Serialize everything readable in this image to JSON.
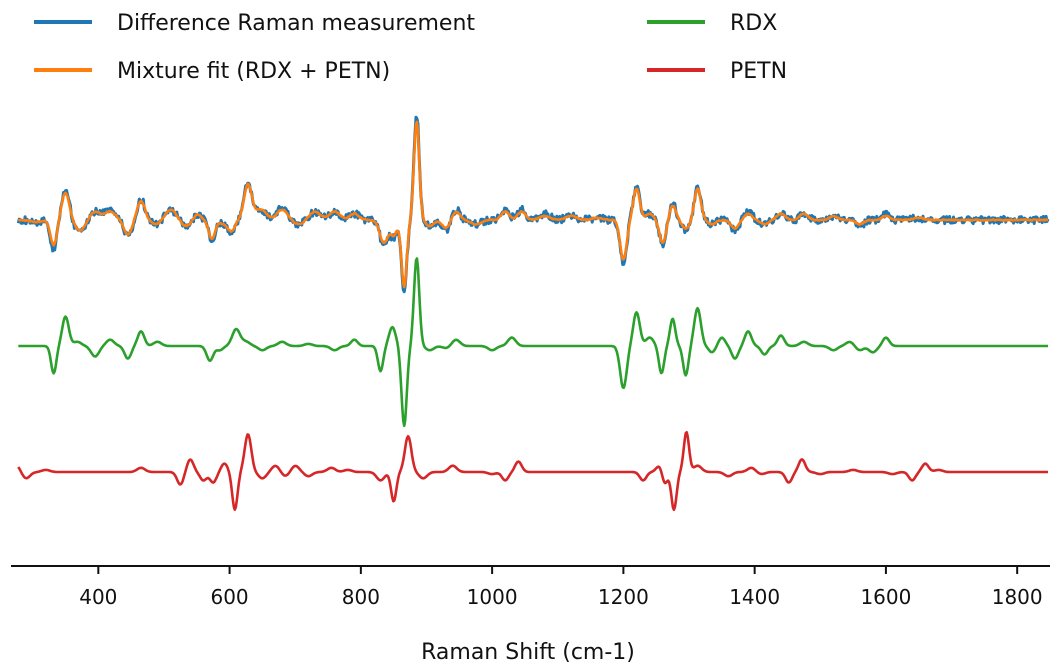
{
  "chart_data": {
    "type": "line",
    "xlabel": "Raman  Shift (cm-1)",
    "ylabel": "",
    "xlim": [
      270,
      1850
    ],
    "x_ticks": [
      400,
      600,
      800,
      1000,
      1200,
      1400,
      1600,
      1800
    ],
    "y_axis_shown": false,
    "grid": false,
    "legend_placement": "top",
    "series": [
      {
        "name": "Difference Raman measurement",
        "color": "#1f77b4",
        "offset": 0,
        "features": [
          [
            305,
            -0.1,
            8
          ],
          [
            332,
            -1.4,
            5
          ],
          [
            350,
            1.4,
            6
          ],
          [
            372,
            -0.6,
            8
          ],
          [
            395,
            0.4,
            8
          ],
          [
            418,
            0.5,
            8
          ],
          [
            445,
            -0.8,
            6
          ],
          [
            465,
            1.0,
            6
          ],
          [
            488,
            -0.2,
            8
          ],
          [
            510,
            0.5,
            8
          ],
          [
            535,
            -0.3,
            8
          ],
          [
            550,
            0.3,
            6
          ],
          [
            573,
            -1.0,
            5
          ],
          [
            592,
            -0.2,
            6
          ],
          [
            603,
            -0.6,
            5
          ],
          [
            628,
            1.8,
            6
          ],
          [
            648,
            0.5,
            8
          ],
          [
            680,
            0.6,
            8
          ],
          [
            705,
            -0.2,
            8
          ],
          [
            730,
            0.4,
            8
          ],
          [
            760,
            0.4,
            8
          ],
          [
            790,
            0.3,
            7
          ],
          [
            835,
            -1.2,
            6
          ],
          [
            850,
            -0.8,
            5
          ],
          [
            866,
            -3.5,
            4
          ],
          [
            885,
            5.0,
            4
          ],
          [
            905,
            -0.3,
            6
          ],
          [
            930,
            -0.5,
            6
          ],
          [
            945,
            0.5,
            6
          ],
          [
            975,
            -0.2,
            8
          ],
          [
            1020,
            0.5,
            6
          ],
          [
            1045,
            0.5,
            6
          ],
          [
            1080,
            0.3,
            8
          ],
          [
            1120,
            0.2,
            8
          ],
          [
            1160,
            0.1,
            8
          ],
          [
            1200,
            -2.0,
            5
          ],
          [
            1220,
            1.6,
            5
          ],
          [
            1240,
            0.3,
            6
          ],
          [
            1260,
            -1.2,
            5
          ],
          [
            1275,
            0.8,
            5
          ],
          [
            1295,
            -0.5,
            6
          ],
          [
            1313,
            1.6,
            5
          ],
          [
            1335,
            -0.2,
            6
          ],
          [
            1370,
            -0.5,
            6
          ],
          [
            1390,
            0.4,
            6
          ],
          [
            1415,
            -0.2,
            6
          ],
          [
            1440,
            0.3,
            6
          ],
          [
            1475,
            0.3,
            6
          ],
          [
            1520,
            0.2,
            6
          ],
          [
            1560,
            -0.3,
            6
          ],
          [
            1600,
            0.3,
            6
          ],
          [
            1650,
            0.1,
            8
          ]
        ],
        "noise": 0.35
      },
      {
        "name": "Mixture fit (RDX + PETN)",
        "color": "#ff7f0e",
        "offset": 0,
        "features": [
          [
            305,
            -0.1,
            8
          ],
          [
            332,
            -1.2,
            5
          ],
          [
            350,
            1.3,
            6
          ],
          [
            372,
            -0.5,
            8
          ],
          [
            395,
            0.4,
            8
          ],
          [
            418,
            0.4,
            8
          ],
          [
            445,
            -0.7,
            6
          ],
          [
            465,
            0.9,
            6
          ],
          [
            488,
            -0.2,
            8
          ],
          [
            510,
            0.5,
            8
          ],
          [
            535,
            -0.3,
            8
          ],
          [
            550,
            0.3,
            6
          ],
          [
            573,
            -0.9,
            5
          ],
          [
            592,
            -0.2,
            6
          ],
          [
            603,
            -0.5,
            5
          ],
          [
            628,
            1.7,
            6
          ],
          [
            648,
            0.5,
            8
          ],
          [
            680,
            0.5,
            8
          ],
          [
            705,
            -0.2,
            8
          ],
          [
            730,
            0.4,
            8
          ],
          [
            760,
            0.4,
            8
          ],
          [
            790,
            0.3,
            7
          ],
          [
            835,
            -1.1,
            6
          ],
          [
            850,
            -0.7,
            5
          ],
          [
            866,
            -3.2,
            4
          ],
          [
            885,
            4.7,
            4
          ],
          [
            905,
            -0.3,
            6
          ],
          [
            930,
            -0.4,
            6
          ],
          [
            945,
            0.4,
            6
          ],
          [
            975,
            -0.2,
            8
          ],
          [
            1020,
            0.4,
            6
          ],
          [
            1045,
            0.4,
            6
          ],
          [
            1080,
            0.2,
            8
          ],
          [
            1120,
            0.2,
            8
          ],
          [
            1160,
            0.1,
            8
          ],
          [
            1200,
            -1.9,
            5
          ],
          [
            1220,
            1.5,
            5
          ],
          [
            1240,
            0.3,
            6
          ],
          [
            1260,
            -1.1,
            5
          ],
          [
            1275,
            0.7,
            5
          ],
          [
            1295,
            -0.4,
            6
          ],
          [
            1313,
            1.5,
            5
          ],
          [
            1335,
            -0.2,
            6
          ],
          [
            1370,
            -0.4,
            6
          ],
          [
            1390,
            0.3,
            6
          ],
          [
            1415,
            -0.2,
            6
          ],
          [
            1440,
            0.3,
            6
          ],
          [
            1475,
            0.3,
            6
          ],
          [
            1520,
            0.2,
            6
          ],
          [
            1560,
            -0.2,
            6
          ],
          [
            1600,
            0.2,
            6
          ],
          [
            1650,
            0.1,
            8
          ]
        ],
        "noise": 0.05
      },
      {
        "name": "RDX",
        "color": "#2ca02c",
        "offset": -6,
        "features": [
          [
            332,
            -1.3,
            4
          ],
          [
            350,
            1.4,
            5
          ],
          [
            368,
            0.2,
            6
          ],
          [
            395,
            -0.5,
            6
          ],
          [
            418,
            0.3,
            6
          ],
          [
            445,
            -0.6,
            5
          ],
          [
            465,
            0.7,
            5
          ],
          [
            490,
            0.2,
            6
          ],
          [
            570,
            -0.7,
            5
          ],
          [
            585,
            -0.2,
            5
          ],
          [
            610,
            0.8,
            6
          ],
          [
            625,
            0.2,
            6
          ],
          [
            650,
            -0.2,
            6
          ],
          [
            680,
            0.2,
            6
          ],
          [
            720,
            0.1,
            6
          ],
          [
            760,
            -0.2,
            6
          ],
          [
            790,
            0.3,
            5
          ],
          [
            830,
            -1.2,
            4
          ],
          [
            848,
            0.9,
            5
          ],
          [
            866,
            -3.8,
            4
          ],
          [
            885,
            4.2,
            4
          ],
          [
            905,
            -0.2,
            6
          ],
          [
            930,
            -0.1,
            6
          ],
          [
            945,
            0.3,
            6
          ],
          [
            1000,
            -0.2,
            6
          ],
          [
            1030,
            0.4,
            6
          ],
          [
            1200,
            -2.0,
            5
          ],
          [
            1220,
            1.6,
            5
          ],
          [
            1240,
            0.4,
            6
          ],
          [
            1258,
            -1.3,
            4
          ],
          [
            1275,
            1.3,
            4
          ],
          [
            1295,
            -1.4,
            4
          ],
          [
            1313,
            1.8,
            5
          ],
          [
            1335,
            -0.3,
            5
          ],
          [
            1350,
            0.4,
            5
          ],
          [
            1370,
            -0.6,
            5
          ],
          [
            1390,
            0.7,
            5
          ],
          [
            1415,
            -0.4,
            5
          ],
          [
            1440,
            0.5,
            5
          ],
          [
            1475,
            0.2,
            6
          ],
          [
            1520,
            -0.2,
            6
          ],
          [
            1545,
            0.2,
            6
          ],
          [
            1560,
            -0.2,
            6
          ],
          [
            1580,
            -0.3,
            6
          ],
          [
            1600,
            0.4,
            5
          ]
        ],
        "noise": 0.0
      },
      {
        "name": "PETN",
        "color": "#d62728",
        "offset": -12,
        "features": [
          [
            276,
            0.3,
            5
          ],
          [
            290,
            -0.3,
            6
          ],
          [
            320,
            0.1,
            6
          ],
          [
            465,
            0.2,
            6
          ],
          [
            525,
            -0.6,
            5
          ],
          [
            540,
            0.6,
            5
          ],
          [
            560,
            -0.4,
            5
          ],
          [
            575,
            -0.5,
            5
          ],
          [
            592,
            0.4,
            5
          ],
          [
            608,
            -1.8,
            4
          ],
          [
            628,
            1.8,
            5
          ],
          [
            650,
            -0.3,
            6
          ],
          [
            670,
            0.3,
            6
          ],
          [
            685,
            -0.2,
            6
          ],
          [
            700,
            0.3,
            6
          ],
          [
            720,
            -0.2,
            6
          ],
          [
            755,
            0.2,
            6
          ],
          [
            780,
            0.1,
            6
          ],
          [
            830,
            -0.4,
            6
          ],
          [
            850,
            -1.4,
            4
          ],
          [
            872,
            1.7,
            5
          ],
          [
            895,
            -0.3,
            6
          ],
          [
            940,
            0.3,
            6
          ],
          [
            1000,
            -0.1,
            6
          ],
          [
            1020,
            -0.4,
            5
          ],
          [
            1040,
            0.5,
            5
          ],
          [
            1230,
            -0.4,
            5
          ],
          [
            1255,
            0.3,
            5
          ],
          [
            1263,
            -0.6,
            4
          ],
          [
            1277,
            -1.8,
            4
          ],
          [
            1296,
            1.9,
            4
          ],
          [
            1313,
            0.3,
            6
          ],
          [
            1360,
            -0.2,
            6
          ],
          [
            1395,
            0.2,
            6
          ],
          [
            1410,
            -0.1,
            6
          ],
          [
            1452,
            -0.5,
            5
          ],
          [
            1472,
            0.6,
            5
          ],
          [
            1500,
            -0.1,
            6
          ],
          [
            1550,
            0.1,
            6
          ],
          [
            1610,
            -0.1,
            6
          ],
          [
            1640,
            -0.4,
            5
          ],
          [
            1660,
            0.4,
            5
          ],
          [
            1680,
            0.1,
            6
          ]
        ],
        "noise": 0.0
      }
    ]
  }
}
